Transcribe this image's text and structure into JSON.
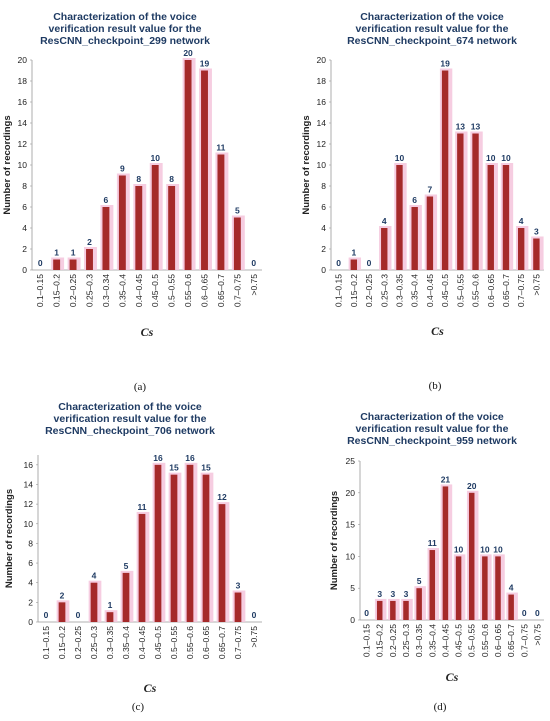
{
  "chart_data": [
    {
      "type": "bar",
      "title": [
        "Characterization of the voice",
        "verification result value for the",
        "ResCNN_checkpoint_299 network"
      ],
      "xlabel": "Cs",
      "ylabel": "Number of recordings",
      "ylim": [
        0,
        20
      ],
      "yticks": [
        0,
        2,
        4,
        6,
        8,
        10,
        12,
        14,
        16,
        18,
        20
      ],
      "categories": [
        "0.1–0.15",
        "0.15–0.2",
        "0.2–0.25",
        "0.25–0.3",
        "0.3–0.34",
        "0.35–0.4",
        "0.4–0.45",
        "0.45–0.5",
        "0.5–0.55",
        "0.55–0.6",
        "0.6–0.65",
        "0.65–0.7",
        "0.7–0.75",
        ">0.75"
      ],
      "values": [
        0,
        1,
        1,
        2,
        6,
        9,
        8,
        10,
        8,
        20,
        19,
        11,
        5,
        0
      ],
      "caption": "(a)"
    },
    {
      "type": "bar",
      "title": [
        "Characterization of the voice",
        "verification result value for the",
        "ResCNN_checkpoint_674 network"
      ],
      "xlabel": "Cs",
      "ylabel": "Number of recordings",
      "ylim": [
        0,
        20
      ],
      "yticks": [
        0,
        2,
        4,
        6,
        8,
        10,
        12,
        14,
        16,
        18,
        20
      ],
      "categories": [
        "0.1–0.15",
        "0.15–0.2",
        "0.2–0.25",
        "0.25–0.3",
        "0.3–0.35",
        "0.35–0.4",
        "0.4–0.45",
        "0.45–0.5",
        "0.5–0.55",
        "0.55–0.6",
        "0.6–0.65",
        "0.65–0.7",
        "0.7–0.75",
        ">0.75"
      ],
      "values": [
        0,
        1,
        0,
        4,
        10,
        6,
        7,
        19,
        13,
        13,
        10,
        10,
        4,
        3
      ],
      "caption": "(b)"
    },
    {
      "type": "bar",
      "title": [
        "Characterization of the voice",
        "verification result value for the",
        "ResCNN_checkpoint_706 network"
      ],
      "xlabel": "Cs",
      "ylabel": "Number of recordings",
      "ylim": [
        0,
        17
      ],
      "yticks": [
        0,
        2,
        4,
        6,
        8,
        10,
        12,
        14,
        16
      ],
      "categories": [
        "0.1–0.15",
        "0.15–0.2",
        "0.2–0.25",
        "0.25–0.3",
        "0.3–0.35",
        "0.35–0.4",
        "0.4–0.45",
        "0.45–0.5",
        "0.5–0.55",
        "0.55–0.6",
        "0.6–0.65",
        "0.65–0.7",
        "0.7–0.75",
        ">0.75"
      ],
      "values": [
        0,
        2,
        0,
        4,
        1,
        5,
        11,
        16,
        15,
        16,
        15,
        12,
        3,
        0
      ],
      "caption": "(c)"
    },
    {
      "type": "bar",
      "title": [
        "Characterization of the voice",
        "verification result value for the",
        "ResCNN_checkpoint_959 network"
      ],
      "xlabel": "Cs",
      "ylabel": "Number of recordings",
      "ylim": [
        0,
        25
      ],
      "yticks": [
        0,
        5,
        10,
        15,
        20,
        25
      ],
      "categories": [
        "0.1–0.15",
        "0.15–0.2",
        "0.2–0.25",
        "0.25–0.3",
        "0.3–0.35",
        "0.35–0.4",
        "0.4–0.45",
        "0.45–0.5",
        "0.5–0.55",
        "0.55–0.6",
        "0.6–0.65",
        "0.65–0.7",
        "0.7–0.75",
        ">0.75"
      ],
      "values": [
        0,
        3,
        3,
        3,
        5,
        11,
        21,
        10,
        20,
        10,
        10,
        4,
        0,
        0
      ],
      "caption": "(d)"
    }
  ],
  "colors": {
    "bar": "#a52a2a",
    "shadow": "#f4c4dc",
    "title": "#1f3b63",
    "label": "#1f3b63"
  }
}
